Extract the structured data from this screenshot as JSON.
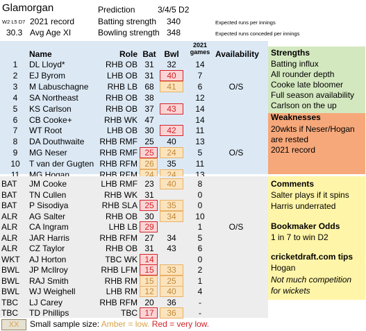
{
  "header": {
    "team": "Glamorgan",
    "w_l_d_label": "W2 L5 D7",
    "record_label": "2021 record",
    "avg_age_value": "30.3",
    "avg_age_label": "Avg Age XI",
    "prediction_label": "Prediction",
    "prediction_value": "3/4/5 D2",
    "batting_label": "Batting strength",
    "batting_value": "340",
    "bowling_label": "Bowling strength",
    "bowling_value": "348",
    "batting_note": "Expected runs per innings",
    "bowling_note": "Expected runs conceded per innings"
  },
  "columns": {
    "name": "Name",
    "role": "Role",
    "bat": "Bat",
    "bwl": "Bwl",
    "games_top": "2021",
    "games_bottom": "games",
    "availability": "Availability"
  },
  "xi": [
    {
      "n": "1",
      "name": "DL Lloyd*",
      "role": "RHB OB",
      "bat": "31",
      "bwl": "32",
      "games": "14",
      "avail": ""
    },
    {
      "n": "2",
      "name": "EJ Byrom",
      "role": "LHB OB",
      "bat": "31",
      "bwl": "40",
      "games": "7",
      "avail": ""
    },
    {
      "n": "3",
      "name": "M Labuschagne",
      "role": "RHB LB",
      "bat": "68",
      "bwl": "41",
      "games": "6",
      "avail": "O/S"
    },
    {
      "n": "4",
      "name": "SA Northeast",
      "role": "RHB OB",
      "bat": "38",
      "bwl": "",
      "games": "12",
      "avail": ""
    },
    {
      "n": "5",
      "name": "KS Carlson",
      "role": "RHB OB",
      "bat": "37",
      "bwl": "43",
      "games": "14",
      "avail": ""
    },
    {
      "n": "6",
      "name": "CB Cooke+",
      "role": "RHB WK",
      "bat": "47",
      "bwl": "",
      "games": "14",
      "avail": ""
    },
    {
      "n": "7",
      "name": "WT Root",
      "role": "LHB OB",
      "bat": "30",
      "bwl": "42",
      "games": "11",
      "avail": ""
    },
    {
      "n": "8",
      "name": "DA Douthwaite",
      "role": "RHB RMF",
      "bat": "25",
      "bwl": "40",
      "games": "13",
      "avail": ""
    },
    {
      "n": "9",
      "name": "MG Neser",
      "role": "RHB RMF",
      "bat": "25",
      "bwl": "24",
      "games": "5",
      "avail": "O/S"
    },
    {
      "n": "10",
      "name": "T van der Gugten",
      "role": "RHB RFM",
      "bat": "26",
      "bwl": "35",
      "games": "11",
      "avail": ""
    },
    {
      "n": "11",
      "name": "MG Hogan",
      "role": "RHB RFM",
      "bat": "24",
      "bwl": "24",
      "games": "13",
      "avail": ""
    }
  ],
  "squad": [
    {
      "n": "BAT",
      "name": "JM Cooke",
      "role": "LHB RMF",
      "bat": "23",
      "bwl": "40",
      "games": "8",
      "avail": ""
    },
    {
      "n": "BAT",
      "name": "TN Cullen",
      "role": "RHB WK",
      "bat": "31",
      "bwl": "",
      "games": "0",
      "avail": ""
    },
    {
      "n": "BAT",
      "name": "P Sisodiya",
      "role": "RHB SLA",
      "bat": "25",
      "bwl": "35",
      "games": "0",
      "avail": ""
    },
    {
      "n": "ALR",
      "name": "AG Salter",
      "role": "RHB OB",
      "bat": "30",
      "bwl": "34",
      "games": "10",
      "avail": ""
    },
    {
      "n": "ALR",
      "name": "CA Ingram",
      "role": "LHB LB",
      "bat": "29",
      "bwl": "",
      "games": "1",
      "avail": "O/S"
    },
    {
      "n": "ALR",
      "name": "JAR Harris",
      "role": "RHB RFM",
      "bat": "27",
      "bwl": "34",
      "games": "5",
      "avail": ""
    },
    {
      "n": "ALR",
      "name": "CZ Taylor",
      "role": "RHB OB",
      "bat": "31",
      "bwl": "43",
      "games": "6",
      "avail": ""
    },
    {
      "n": "WKT",
      "name": "AJ Horton",
      "role": "TBC WK",
      "bat": "14",
      "bwl": "",
      "games": "0",
      "avail": ""
    },
    {
      "n": "BWL",
      "name": "JP McIlroy",
      "role": "RHB LFM",
      "bat": "15",
      "bwl": "33",
      "games": "2",
      "avail": ""
    },
    {
      "n": "BWL",
      "name": "RAJ Smith",
      "role": "RHB RM",
      "bat": "15",
      "bwl": "25",
      "games": "1",
      "avail": ""
    },
    {
      "n": "BWL",
      "name": "WJ Weighell",
      "role": "LHB RM",
      "bat": "12",
      "bwl": "40",
      "games": "4",
      "avail": ""
    },
    {
      "n": "TBC",
      "name": "LJ Carey",
      "role": "RHB RFM",
      "bat": "20",
      "bwl": "36",
      "games": "-",
      "avail": ""
    },
    {
      "n": "TBC",
      "name": "TD Phillips",
      "role": "TBC",
      "bat": "17",
      "bwl": "36",
      "games": "-",
      "avail": ""
    }
  ],
  "highlights": {
    "xi_bat": {
      "9": "red",
      "10": "amber",
      "11": "amber"
    },
    "xi_bwl": {
      "2": "red",
      "3": "amber",
      "5": "red",
      "7": "red",
      "9": "amber",
      "11": "amber"
    },
    "squad_bat": {
      "3": "red",
      "5": "red",
      "8": "red",
      "9": "red",
      "10": "amber",
      "11": "amber",
      "13": "red"
    },
    "squad_bwl": {
      "1": "amber",
      "3": "amber",
      "4": "amber",
      "9": "amber",
      "10": "amber",
      "11": "amber",
      "13": "amber"
    }
  },
  "strengths": {
    "title": "Strengths",
    "items": [
      "Batting influx",
      "All rounder depth",
      "Cooke late bloomer",
      "Full season availability",
      "Carlson on the up"
    ]
  },
  "weaknesses": {
    "title": "Weaknesses",
    "items": [
      "20wkts if Neser/Hogan",
      "are rested",
      "2021 record"
    ]
  },
  "comments": {
    "title": "Comments",
    "items": [
      "Salter plays if it spins",
      "Harris underrated"
    ]
  },
  "bookmaker": {
    "title": "Bookmaker Odds",
    "text": "1 in 7 to win D2"
  },
  "tips": {
    "title": "cricketdraft.com tips",
    "text": "Hogan",
    "note1": "Not much competition",
    "note2": "for wickets"
  },
  "key": {
    "sample": "XX",
    "text_lead": "Small sample size:",
    "amber_label": "Amber = low.",
    "red_label": "Red = very low.",
    "amber_color": "#d9a24a",
    "red_color": "#d2232a"
  }
}
